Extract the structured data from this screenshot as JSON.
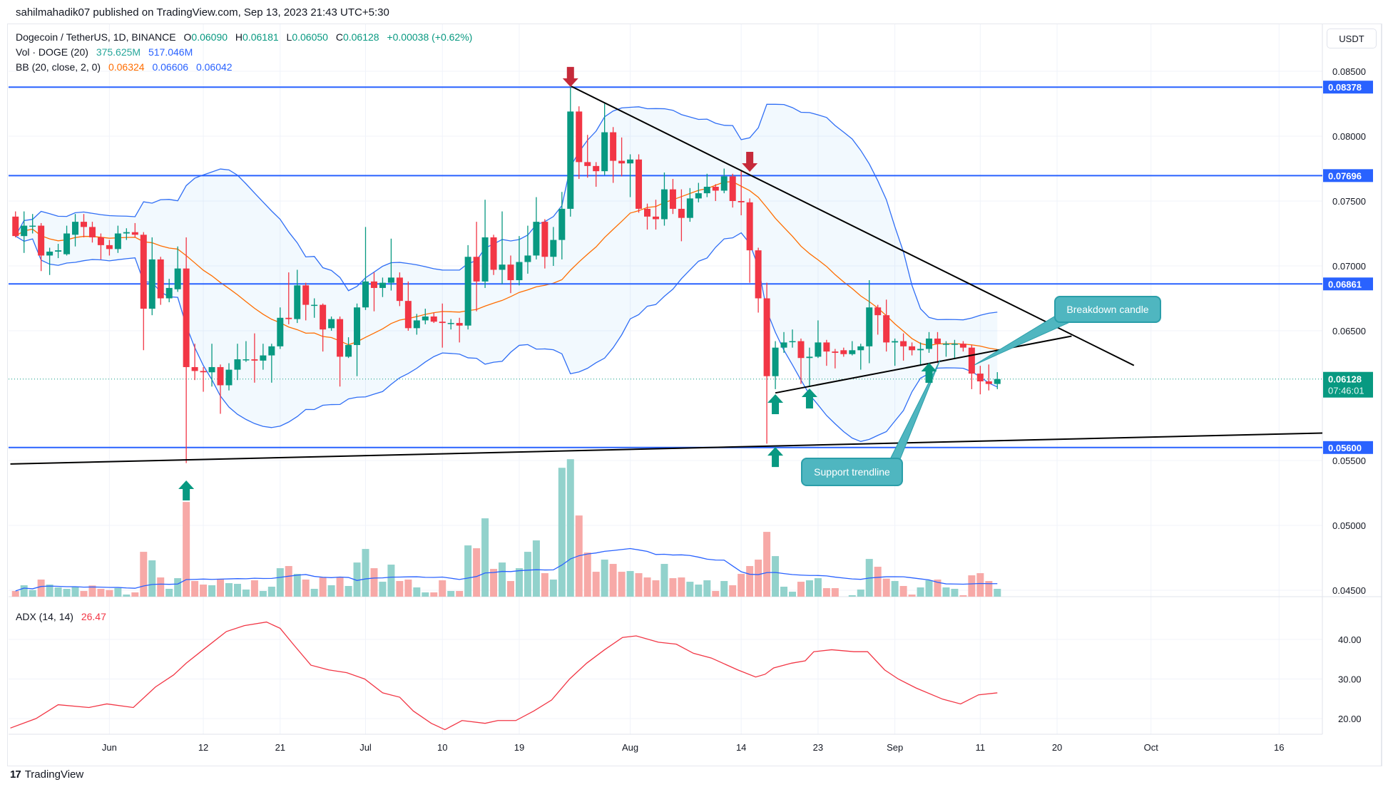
{
  "header": {
    "published": "sahilmahadik07 published on TradingView.com, Sep 13, 2023 21:43 UTC+5:30"
  },
  "legend": {
    "symbol": "Dogecoin / TetherUS, 1D, BINANCE",
    "o_label": "O",
    "o": "0.06090",
    "h_label": "H",
    "h": "0.06181",
    "l_label": "L",
    "l": "0.06050",
    "c_label": "C",
    "c": "0.06128",
    "change": "+0.00038 (+0.62%)",
    "vol_label": "Vol · DOGE (20)",
    "vol": "375.625M",
    "vol_ma": "517.046M",
    "bb_label": "BB (20, close, 2, 0)",
    "bb_basis": "0.06324",
    "bb_upper": "0.06606",
    "bb_lower": "0.06042"
  },
  "currency_button": "USDT",
  "adx": {
    "label": "ADX (14, 14)",
    "value": "26.47"
  },
  "callouts": {
    "breakdown": "Breakdown candle",
    "support": "Support trendline"
  },
  "footer": {
    "logo_mark": "17",
    "brand": "TradingView"
  },
  "colors": {
    "up": "#089981",
    "down": "#f23645",
    "level": "#2962ff",
    "bb_basis": "#ff6d00",
    "bb_band": "#2f6ef5",
    "adx": "#f23645",
    "callout": "#4fb6c0",
    "arrow_down": "#c62a3a"
  },
  "chart_data": {
    "type": "candlestick",
    "first_date": "2023-05-21",
    "price_ticks": [
      "0.08500",
      "0.08000",
      "0.07500",
      "0.07000",
      "0.06500",
      "0.05500",
      "0.05000",
      "0.04500"
    ],
    "adx_ticks": [
      "40.00",
      "30.00",
      "20.00"
    ],
    "date_ticks": [
      {
        "label": "Jun",
        "day": 0
      },
      {
        "label": "12",
        "day": 11
      },
      {
        "label": "21",
        "day": 20
      },
      {
        "label": "Jul",
        "day": 30
      },
      {
        "label": "10",
        "day": 39
      },
      {
        "label": "19",
        "day": 48
      },
      {
        "label": "Aug",
        "day": 61
      },
      {
        "label": "14",
        "day": 74
      },
      {
        "label": "23",
        "day": 83
      },
      {
        "label": "Sep",
        "day": 92
      },
      {
        "label": "11",
        "day": 102
      },
      {
        "label": "20",
        "day": 111
      },
      {
        "label": "Oct",
        "day": 122
      },
      {
        "label": "16",
        "day": 137
      }
    ],
    "levels": [
      {
        "price": 0.08378,
        "label": "0.08378"
      },
      {
        "price": 0.07696,
        "label": "0.07696"
      },
      {
        "price": 0.06861,
        "label": "0.06861"
      },
      {
        "price": 0.056,
        "label": "0.05600"
      }
    ],
    "last_price": {
      "price": 0.06128,
      "label": "0.06128",
      "countdown": "07:46:01"
    },
    "candles_ohlc_from_day_minus_11": [
      [
        0.0738,
        0.0742,
        0.0722,
        0.0723
      ],
      [
        0.0723,
        0.0742,
        0.071,
        0.0731
      ],
      [
        0.0731,
        0.074,
        0.0725,
        0.0731
      ],
      [
        0.0731,
        0.0733,
        0.0696,
        0.0708
      ],
      [
        0.0708,
        0.0714,
        0.0693,
        0.0711
      ],
      [
        0.0711,
        0.0717,
        0.0706,
        0.0712
      ],
      [
        0.0709,
        0.0731,
        0.0708,
        0.0725
      ],
      [
        0.0724,
        0.074,
        0.0715,
        0.0734
      ],
      [
        0.0734,
        0.074,
        0.0722,
        0.073
      ],
      [
        0.073,
        0.0734,
        0.0718,
        0.0722
      ],
      [
        0.0722,
        0.0725,
        0.0705,
        0.0716
      ],
      [
        0.0716,
        0.072,
        0.0708,
        0.0713
      ],
      [
        0.0713,
        0.0731,
        0.071,
        0.0725
      ],
      [
        0.0725,
        0.0729,
        0.072,
        0.0726
      ],
      [
        0.0726,
        0.0733,
        0.0722,
        0.0724
      ],
      [
        0.0724,
        0.0726,
        0.0635,
        0.0667
      ],
      [
        0.0667,
        0.0722,
        0.0662,
        0.0705
      ],
      [
        0.0705,
        0.0707,
        0.067,
        0.0675
      ],
      [
        0.0675,
        0.069,
        0.0672,
        0.0683
      ],
      [
        0.0682,
        0.0715,
        0.068,
        0.0698
      ],
      [
        0.0698,
        0.0722,
        0.0548,
        0.0622
      ],
      [
        0.0622,
        0.064,
        0.0612,
        0.0619
      ],
      [
        0.0619,
        0.0622,
        0.0603,
        0.0618
      ],
      [
        0.0618,
        0.064,
        0.0607,
        0.0622
      ],
      [
        0.0622,
        0.0624,
        0.0586,
        0.0608
      ],
      [
        0.0608,
        0.0625,
        0.0604,
        0.062
      ],
      [
        0.062,
        0.064,
        0.0612,
        0.0628
      ],
      [
        0.0628,
        0.0642,
        0.0626,
        0.0628
      ],
      [
        0.0628,
        0.0648,
        0.061,
        0.0627
      ],
      [
        0.0627,
        0.064,
        0.062,
        0.0631
      ],
      [
        0.0631,
        0.064,
        0.061,
        0.0638
      ],
      [
        0.0638,
        0.0668,
        0.0636,
        0.066
      ],
      [
        0.066,
        0.0695,
        0.0655,
        0.0659
      ],
      [
        0.0659,
        0.0697,
        0.0656,
        0.0685
      ],
      [
        0.0685,
        0.0687,
        0.0658,
        0.067
      ],
      [
        0.067,
        0.0675,
        0.066,
        0.067
      ],
      [
        0.067,
        0.0671,
        0.0634,
        0.0651
      ],
      [
        0.0652,
        0.0661,
        0.065,
        0.0659
      ],
      [
        0.0659,
        0.0661,
        0.0607,
        0.063
      ],
      [
        0.063,
        0.0645,
        0.0629,
        0.0639
      ],
      [
        0.0639,
        0.0671,
        0.0615,
        0.0668
      ],
      [
        0.0668,
        0.073,
        0.0666,
        0.0688
      ],
      [
        0.0688,
        0.0695,
        0.0665,
        0.0683
      ],
      [
        0.0683,
        0.0691,
        0.0676,
        0.0687
      ],
      [
        0.0687,
        0.0721,
        0.0681,
        0.0691
      ],
      [
        0.0691,
        0.0695,
        0.0669,
        0.0673
      ],
      [
        0.0673,
        0.0688,
        0.065,
        0.0652
      ],
      [
        0.0652,
        0.0663,
        0.0647,
        0.0658
      ],
      [
        0.0658,
        0.0667,
        0.0655,
        0.0661
      ],
      [
        0.0661,
        0.0664,
        0.0656,
        0.0657
      ],
      [
        0.0657,
        0.0671,
        0.0637,
        0.0656
      ],
      [
        0.0656,
        0.0659,
        0.0651,
        0.0656
      ],
      [
        0.0656,
        0.066,
        0.0641,
        0.0654
      ],
      [
        0.0654,
        0.0716,
        0.0651,
        0.0707
      ],
      [
        0.0707,
        0.0734,
        0.0665,
        0.0688
      ],
      [
        0.0688,
        0.0751,
        0.0683,
        0.0722
      ],
      [
        0.0722,
        0.0724,
        0.0693,
        0.0697
      ],
      [
        0.0697,
        0.0742,
        0.0686,
        0.0701
      ],
      [
        0.0701,
        0.0708,
        0.0679,
        0.0689
      ],
      [
        0.0689,
        0.0723,
        0.0685,
        0.0703
      ],
      [
        0.0703,
        0.0731,
        0.0694,
        0.0708
      ],
      [
        0.0708,
        0.0753,
        0.0705,
        0.0734
      ],
      [
        0.0734,
        0.0736,
        0.0698,
        0.0707
      ],
      [
        0.0707,
        0.073,
        0.07,
        0.072
      ],
      [
        0.072,
        0.0757,
        0.0705,
        0.0744
      ],
      [
        0.0744,
        0.0838,
        0.0738,
        0.0819
      ],
      [
        0.0819,
        0.0823,
        0.0767,
        0.078
      ],
      [
        0.078,
        0.0801,
        0.0768,
        0.0777
      ],
      [
        0.0777,
        0.078,
        0.0761,
        0.0773
      ],
      [
        0.0773,
        0.0825,
        0.077,
        0.0803
      ],
      [
        0.0803,
        0.0807,
        0.0764,
        0.0781
      ],
      [
        0.0781,
        0.0799,
        0.0769,
        0.0779
      ],
      [
        0.0779,
        0.0786,
        0.0753,
        0.0782
      ],
      [
        0.0782,
        0.0786,
        0.0741,
        0.0744
      ],
      [
        0.0744,
        0.0748,
        0.0728,
        0.0738
      ],
      [
        0.0738,
        0.0751,
        0.0728,
        0.0736
      ],
      [
        0.0736,
        0.0772,
        0.0731,
        0.0759
      ],
      [
        0.0759,
        0.0767,
        0.074,
        0.0744
      ],
      [
        0.0744,
        0.0759,
        0.0719,
        0.0737
      ],
      [
        0.0737,
        0.076,
        0.0734,
        0.0752
      ],
      [
        0.0752,
        0.0764,
        0.0749,
        0.0756
      ],
      [
        0.0756,
        0.0771,
        0.0753,
        0.0761
      ],
      [
        0.0761,
        0.0763,
        0.075,
        0.0758
      ],
      [
        0.0758,
        0.0775,
        0.0756,
        0.0769
      ],
      [
        0.0769,
        0.0771,
        0.0745,
        0.075
      ],
      [
        0.075,
        0.0773,
        0.0739,
        0.0749
      ],
      [
        0.0749,
        0.0752,
        0.0687,
        0.0712
      ],
      [
        0.0712,
        0.0714,
        0.0664,
        0.0675
      ],
      [
        0.0675,
        0.0687,
        0.0563,
        0.0615
      ],
      [
        0.0615,
        0.0642,
        0.0605,
        0.0637
      ],
      [
        0.0637,
        0.0649,
        0.0633,
        0.0641
      ],
      [
        0.0642,
        0.0651,
        0.0637,
        0.0642
      ],
      [
        0.0642,
        0.0644,
        0.0609,
        0.0629
      ],
      [
        0.0629,
        0.0637,
        0.0607,
        0.063
      ],
      [
        0.063,
        0.0658,
        0.0629,
        0.0641
      ],
      [
        0.0641,
        0.0643,
        0.0623,
        0.0634
      ],
      [
        0.0634,
        0.0636,
        0.0621,
        0.0633
      ],
      [
        0.0635,
        0.0637,
        0.063,
        0.0632
      ],
      [
        0.0632,
        0.0642,
        0.0631,
        0.0635
      ],
      [
        0.0635,
        0.064,
        0.062,
        0.0638
      ],
      [
        0.0638,
        0.0689,
        0.0625,
        0.0668
      ],
      [
        0.0668,
        0.067,
        0.0647,
        0.0662
      ],
      [
        0.0662,
        0.0674,
        0.0634,
        0.0641
      ],
      [
        0.0641,
        0.0644,
        0.0623,
        0.0642
      ],
      [
        0.0642,
        0.0648,
        0.0627,
        0.0638
      ],
      [
        0.0638,
        0.0641,
        0.0631,
        0.0635
      ],
      [
        0.0635,
        0.0641,
        0.0623,
        0.0636
      ],
      [
        0.0636,
        0.0649,
        0.0633,
        0.0644
      ],
      [
        0.0644,
        0.0649,
        0.0625,
        0.064
      ],
      [
        0.064,
        0.0642,
        0.063,
        0.064
      ],
      [
        0.064,
        0.0643,
        0.0628,
        0.064
      ],
      [
        0.064,
        0.0642,
        0.0634,
        0.0637
      ],
      [
        0.0637,
        0.0639,
        0.0605,
        0.0617
      ],
      [
        0.0617,
        0.0623,
        0.0601,
        0.0611
      ],
      [
        0.0611,
        0.0624,
        0.0604,
        0.0609
      ],
      [
        0.0609,
        0.06181,
        0.0605,
        0.06128
      ]
    ],
    "volume_millions": [
      319,
      470,
      344,
      620,
      488,
      413,
      376,
      432,
      319,
      463,
      376,
      344,
      394,
      225,
      282,
      1352,
      1127,
      676,
      376,
      657,
      2667,
      582,
      488,
      470,
      632,
      526,
      507,
      357,
      601,
      319,
      432,
      920,
      977,
      770,
      620,
      376,
      676,
      470,
      676,
      451,
      1070,
      1427,
      920,
      563,
      1014,
      582,
      620,
      413,
      282,
      282,
      601,
      319,
      319,
      1521,
      1446,
      2235,
      901,
      1070,
      582,
      920,
      1352,
      1653,
      789,
      620,
      3568,
      3794,
      2310,
      1333,
      826,
      1146,
      1033,
      826,
      845,
      789,
      676,
      601,
      1033,
      657,
      676,
      563,
      488,
      601,
      319,
      582,
      470,
      770,
      977,
      1146,
      1878,
      1239,
      432,
      300,
      563,
      601,
      657,
      394,
      394,
      150,
      207,
      357,
      1164,
      958,
      645,
      582,
      451,
      225,
      413,
      601,
      620,
      413,
      376,
      207,
      732,
      789,
      582,
      376
    ],
    "adx_points_day_value": [
      [
        -11.6,
        17.6
      ],
      [
        -8.6,
        20
      ],
      [
        -6,
        23.5
      ],
      [
        -2.4,
        22.8
      ],
      [
        -0.3,
        23.7
      ],
      [
        2.8,
        22.8
      ],
      [
        5.4,
        28
      ],
      [
        7.5,
        31
      ],
      [
        9,
        34
      ],
      [
        11.1,
        37.6
      ],
      [
        13.7,
        42
      ],
      [
        15.8,
        43.5
      ],
      [
        18.4,
        44.4
      ],
      [
        20,
        42.8
      ],
      [
        21.6,
        38.6
      ],
      [
        23.6,
        33.5
      ],
      [
        25.7,
        32.3
      ],
      [
        27.8,
        31.6
      ],
      [
        29.9,
        30
      ],
      [
        32,
        26.5
      ],
      [
        34,
        25.4
      ],
      [
        35.6,
        21.9
      ],
      [
        37.7,
        18.8
      ],
      [
        39.3,
        17.2
      ],
      [
        41.3,
        19.5
      ],
      [
        44,
        18.8
      ],
      [
        45.5,
        19.5
      ],
      [
        47.6,
        19.5
      ],
      [
        49.7,
        21.9
      ],
      [
        51.8,
        24.7
      ],
      [
        53.9,
        30
      ],
      [
        55.9,
        34
      ],
      [
        58,
        37.4
      ],
      [
        60.1,
        40.5
      ],
      [
        61.7,
        40.9
      ],
      [
        64.3,
        39.3
      ],
      [
        66.4,
        38.8
      ],
      [
        68.4,
        36.5
      ],
      [
        70.5,
        35.3
      ],
      [
        73.6,
        32.3
      ],
      [
        75.7,
        30.5
      ],
      [
        76.8,
        31.2
      ],
      [
        77.8,
        32.8
      ],
      [
        79.9,
        34
      ],
      [
        81.5,
        34.6
      ],
      [
        82.5,
        36.9
      ],
      [
        84.6,
        37.4
      ],
      [
        87.2,
        36.9
      ],
      [
        88.8,
        36.9
      ],
      [
        90.8,
        32.3
      ],
      [
        92.4,
        30
      ],
      [
        94.5,
        27.7
      ],
      [
        97.6,
        24.9
      ],
      [
        99.7,
        23.7
      ],
      [
        101.8,
        26
      ],
      [
        104,
        26.5
      ]
    ],
    "trendlines_day_price": [
      {
        "name": "descending-resistance",
        "from": [
          54.1,
          0.08384
        ],
        "to": [
          120,
          0.06233
        ]
      },
      {
        "name": "support-trendline",
        "from": [
          78,
          0.06021
        ],
        "to": [
          112.7,
          0.06459
        ]
      },
      {
        "name": "long-term-support",
        "from": [
          -11.6,
          0.05473
        ],
        "to": [
          142.4,
          0.05712
        ]
      }
    ],
    "arrows_day_price": [
      {
        "dir": "down",
        "day": 54,
        "price": 0.0838
      },
      {
        "dir": "down",
        "day": 75,
        "price": 0.07725
      },
      {
        "dir": "up",
        "day": 9,
        "price": 0.05346
      },
      {
        "dir": "up",
        "day": 78,
        "price": 0.06011
      },
      {
        "dir": "up",
        "day": 82,
        "price": 0.06055
      },
      {
        "dir": "up",
        "day": 78,
        "price": 0.05604
      },
      {
        "dir": "up",
        "day": 96,
        "price": 0.06253
      }
    ]
  }
}
